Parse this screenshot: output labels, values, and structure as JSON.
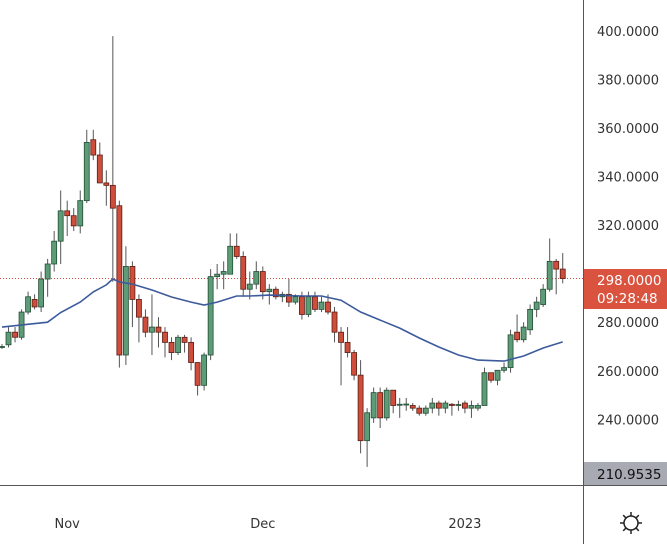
{
  "chart_data": {
    "type": "candlestick",
    "title": "",
    "xlabel": "",
    "ylabel": "",
    "ylim": [
      210.9535,
      412
    ],
    "grid": false,
    "y_ticks": [
      "400.0000",
      "380.0000",
      "360.0000",
      "340.0000",
      "320.0000",
      "280.0000",
      "260.0000",
      "240.0000"
    ],
    "y_tick_values": [
      400,
      380,
      360,
      340,
      320,
      280,
      260,
      240
    ],
    "x_ticks": [
      {
        "date": "2022-11-01",
        "label": "Nov"
      },
      {
        "date": "2022-12-01",
        "label": "Dec"
      },
      {
        "date": "2023-01-01",
        "label": "2023"
      }
    ],
    "last_price": {
      "value": "298.0000",
      "countdown": "09:28:48",
      "color": "#d9533f"
    },
    "bottom_marker": {
      "value": "210.9535",
      "color": "#a8aab3"
    },
    "colors": {
      "up": "#5d9c77",
      "up_border": "#244e36",
      "down": "#cf4e3b",
      "down_border": "#5a1d14",
      "wick": "#555555",
      "ma": "#3d5a9c"
    },
    "candles_fields": [
      "date",
      "open",
      "high",
      "low",
      "close"
    ],
    "candles": [
      [
        "2022-10-22",
        269.8,
        271,
        269,
        270
      ],
      [
        "2022-10-23",
        270.7,
        278,
        269.6,
        275.9
      ],
      [
        "2022-10-24",
        275.9,
        278,
        271.7,
        273.8
      ],
      [
        "2022-10-25",
        273.8,
        285.3,
        272.8,
        284.2
      ],
      [
        "2022-10-26",
        284.2,
        292.6,
        283.2,
        290.5
      ],
      [
        "2022-10-27",
        289.4,
        291.5,
        285.3,
        286.3
      ],
      [
        "2022-10-28",
        286.3,
        300.9,
        284.2,
        297.8
      ],
      [
        "2022-10-29",
        297.8,
        306.1,
        290.5,
        304
      ],
      [
        "2022-10-30",
        304,
        317.6,
        300.9,
        313.4
      ],
      [
        "2022-10-31",
        313.4,
        334.3,
        304,
        325.9
      ],
      [
        "2022-11-01",
        325.9,
        330.1,
        315.5,
        323.9
      ],
      [
        "2022-11-02",
        323.9,
        327,
        317.6,
        319.7
      ],
      [
        "2022-11-03",
        319.7,
        334.3,
        316.6,
        330.1
      ],
      [
        "2022-11-04",
        330.1,
        359.3,
        329.1,
        354.1
      ],
      [
        "2022-11-05",
        355.2,
        359.3,
        346.8,
        348.9
      ],
      [
        "2022-11-06",
        348.9,
        354.1,
        337.4,
        337.4
      ],
      [
        "2022-11-07",
        337.4,
        342.6,
        328,
        336.4
      ],
      [
        "2022-11-08",
        336.4,
        397.9,
        296.7,
        327
      ],
      [
        "2022-11-09",
        328,
        330.1,
        261.3,
        266.5
      ],
      [
        "2022-11-10",
        266.5,
        311.3,
        262.4,
        303
      ],
      [
        "2022-11-11",
        303,
        305.1,
        278,
        289.4
      ],
      [
        "2022-11-12",
        289.4,
        291.5,
        271.7,
        282.1
      ],
      [
        "2022-11-13",
        282.1,
        285.3,
        273.8,
        275.9
      ],
      [
        "2022-11-14",
        275.9,
        291.5,
        266.5,
        278
      ],
      [
        "2022-11-15",
        278,
        282.1,
        269.6,
        275.9
      ],
      [
        "2022-11-16",
        275.9,
        278,
        265.5,
        271.7
      ],
      [
        "2022-11-17",
        271.7,
        273.8,
        264.4,
        267.5
      ],
      [
        "2022-11-18",
        267.5,
        274.8,
        266.5,
        273.8
      ],
      [
        "2022-11-19",
        273.8,
        274.8,
        267.5,
        271.7
      ],
      [
        "2022-11-20",
        271.7,
        273.8,
        260.2,
        263.4
      ],
      [
        "2022-11-21",
        263.4,
        263.4,
        249.8,
        254
      ],
      [
        "2022-11-22",
        254,
        267.5,
        251.9,
        266.5
      ],
      [
        "2022-11-23",
        266.5,
        301.9,
        264.4,
        298.8
      ],
      [
        "2022-11-24",
        298.8,
        304,
        293.6,
        299.8
      ],
      [
        "2022-11-25",
        299.8,
        305.1,
        293.6,
        300.9
      ],
      [
        "2022-11-26",
        299.8,
        316.6,
        299.8,
        311.3
      ],
      [
        "2022-11-27",
        311.3,
        316.6,
        306.1,
        307.1
      ],
      [
        "2022-11-28",
        307.1,
        309.2,
        290.5,
        293.6
      ],
      [
        "2022-11-29",
        293.6,
        300.9,
        289.4,
        295.7
      ],
      [
        "2022-11-30",
        295.7,
        305.1,
        293.6,
        300.9
      ],
      [
        "2022-12-01",
        300.9,
        303,
        289.4,
        292.6
      ],
      [
        "2022-12-02",
        292.6,
        295.7,
        287.3,
        293.6
      ],
      [
        "2022-12-03",
        293.6,
        294.7,
        289.4,
        290.5
      ],
      [
        "2022-12-04",
        290.5,
        292.6,
        288.3,
        291.5
      ],
      [
        "2022-12-05",
        291.5,
        297.8,
        286.3,
        288.3
      ],
      [
        "2022-12-06",
        288.3,
        291.5,
        287.3,
        290.5
      ],
      [
        "2022-12-07",
        290.5,
        292.6,
        281.1,
        283.2
      ],
      [
        "2022-12-08",
        283.2,
        292.6,
        282.1,
        290.5
      ],
      [
        "2022-12-09",
        290.5,
        292.6,
        284.2,
        285.3
      ],
      [
        "2022-12-10",
        285.3,
        290.5,
        284.2,
        288.3
      ],
      [
        "2022-12-11",
        288.3,
        291.5,
        283.2,
        284.2
      ],
      [
        "2022-12-12",
        284.2,
        286.3,
        271.7,
        275.9
      ],
      [
        "2022-12-13",
        275.9,
        278,
        254,
        271.7
      ],
      [
        "2022-12-14",
        271.7,
        278,
        265.5,
        267.5
      ],
      [
        "2022-12-15",
        267.5,
        268.6,
        256.1,
        258.2
      ],
      [
        "2022-12-16",
        258.2,
        264.4,
        226,
        231.2
      ],
      [
        "2022-12-17",
        231.2,
        244.6,
        220.4,
        242.7
      ],
      [
        "2022-12-18",
        240.6,
        253.1,
        238.5,
        251
      ],
      [
        "2022-12-19",
        251,
        253.1,
        236.4,
        240.6
      ],
      [
        "2022-12-20",
        240.6,
        253.1,
        239.5,
        252
      ],
      [
        "2022-12-21",
        252,
        252,
        242.5,
        245.7
      ],
      [
        "2022-12-22",
        246.2,
        248.8,
        240.6,
        246.2
      ],
      [
        "2022-12-23",
        246.2,
        248.8,
        243.5,
        246.3
      ],
      [
        "2022-12-24",
        245.7,
        246.7,
        243.5,
        244.6
      ],
      [
        "2022-12-25",
        244.6,
        245.7,
        241.5,
        242.5
      ],
      [
        "2022-12-26",
        242.5,
        245.7,
        241.5,
        244.6
      ],
      [
        "2022-12-27",
        244.6,
        248.8,
        242.5,
        246.7
      ],
      [
        "2022-12-28",
        246.7,
        247.7,
        241.5,
        244.6
      ],
      [
        "2022-12-29",
        244.6,
        247.7,
        242.5,
        246.7
      ],
      [
        "2022-12-30",
        246.2,
        246.7,
        241.5,
        245.7
      ],
      [
        "2022-12-31",
        245.7,
        247.7,
        243.5,
        246.1
      ],
      [
        "2023-01-01",
        246.7,
        247.7,
        242.5,
        244.6
      ],
      [
        "2023-01-02",
        244.6,
        247.7,
        240.6,
        245.7
      ],
      [
        "2023-01-03",
        244.6,
        246.7,
        243.5,
        245.7
      ],
      [
        "2023-01-04",
        245.7,
        261.3,
        245.7,
        259.2
      ],
      [
        "2023-01-05",
        259.2,
        259.2,
        255,
        256.1
      ],
      [
        "2023-01-06",
        256.1,
        260.2,
        254,
        260.2
      ],
      [
        "2023-01-07",
        260.2,
        263.4,
        259.2,
        261.3
      ],
      [
        "2023-01-08",
        261.3,
        276.9,
        259.2,
        274.8
      ],
      [
        "2023-01-09",
        275.9,
        283.2,
        271.7,
        272.8
      ],
      [
        "2023-01-10",
        272.8,
        280,
        271.7,
        278
      ],
      [
        "2023-01-11",
        276.9,
        287.3,
        274.8,
        285.3
      ],
      [
        "2023-01-12",
        285.3,
        290.5,
        282.1,
        288.3
      ],
      [
        "2023-01-13",
        287.3,
        295.7,
        286.3,
        293.6
      ],
      [
        "2023-01-14",
        293.6,
        314.5,
        292.6,
        305.1
      ],
      [
        "2023-01-15",
        305.1,
        306.1,
        291.5,
        301.9
      ],
      [
        "2023-01-16",
        301.9,
        308.5,
        296,
        298
      ]
    ],
    "moving_average": [
      [
        "2022-10-22",
        278
      ],
      [
        "2022-10-29",
        280
      ],
      [
        "2022-10-31",
        284
      ],
      [
        "2022-11-03",
        288.3
      ],
      [
        "2022-11-05",
        292.5
      ],
      [
        "2022-11-07",
        295.4
      ],
      [
        "2022-11-08",
        297.8
      ],
      [
        "2022-11-09",
        296.6
      ],
      [
        "2022-11-11",
        295.7
      ],
      [
        "2022-11-14",
        293.3
      ],
      [
        "2022-11-17",
        290.4
      ],
      [
        "2022-11-20",
        288.3
      ],
      [
        "2022-11-22",
        287.1
      ],
      [
        "2022-11-24",
        288.3
      ],
      [
        "2022-11-27",
        290.8
      ],
      [
        "2022-11-29",
        290.8
      ],
      [
        "2022-12-02",
        291.2
      ],
      [
        "2022-12-07",
        290.8
      ],
      [
        "2022-12-10",
        290.8
      ],
      [
        "2022-12-13",
        289.1
      ],
      [
        "2022-12-16",
        284.2
      ],
      [
        "2022-12-19",
        280.9
      ],
      [
        "2022-12-22",
        277.6
      ],
      [
        "2022-12-25",
        273.5
      ],
      [
        "2022-12-28",
        269.8
      ],
      [
        "2022-12-31",
        266.5
      ],
      [
        "2023-01-03",
        264.4
      ],
      [
        "2023-01-07",
        264
      ],
      [
        "2023-01-10",
        266.1
      ],
      [
        "2023-01-13",
        269.4
      ],
      [
        "2023-01-16",
        271.9
      ]
    ]
  },
  "settings_icon": "gear-icon"
}
